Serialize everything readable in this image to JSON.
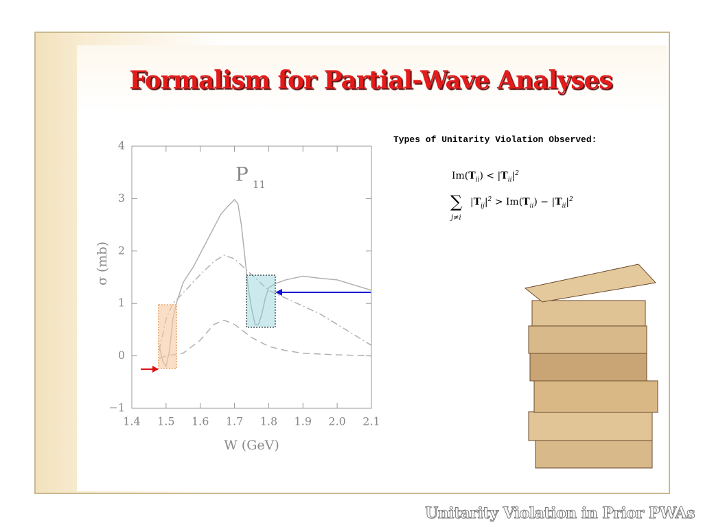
{
  "slide": {
    "title": "Formalism for Partial-Wave Analyses",
    "heading": "Types of Unitarity Violation Observed:",
    "equations": [
      [
        [
          "Im(",
          ""
        ],
        [
          "T",
          "b"
        ],
        [
          "ii",
          "sub"
        ],
        [
          ") < |",
          ""
        ],
        [
          "T",
          "b"
        ],
        [
          "ii",
          "sub"
        ],
        [
          "|",
          ""
        ],
        [
          "2",
          "sup"
        ]
      ],
      [
        [
          "|",
          ""
        ],
        [
          "T",
          "b"
        ],
        [
          "ij",
          "sub"
        ],
        [
          "|",
          ""
        ],
        [
          "2",
          "sup"
        ],
        [
          " > Im(",
          ""
        ],
        [
          "T",
          "b"
        ],
        [
          "ii",
          "sub"
        ],
        [
          ") − |",
          ""
        ],
        [
          "T",
          "b"
        ],
        [
          "ii",
          "sub"
        ],
        [
          "|",
          ""
        ],
        [
          "2",
          "sup"
        ]
      ]
    ],
    "sum_symbol": "∑",
    "sum_index": "j≠i",
    "footer": "Unitarity Violation in Prior PWAs"
  },
  "chart_data": {
    "type": "line",
    "annotation": "P",
    "annotation_subscript": "11",
    "x_label": "W (GeV)",
    "y_label": "σ (mb)",
    "xlim": [
      1.4,
      2.1
    ],
    "ylim": [
      -1,
      4
    ],
    "xticks": [
      1.4,
      1.5,
      1.6,
      1.7,
      1.8,
      1.9,
      {
        "value": 2,
        "label": "2.0"
      },
      2.1
    ],
    "yticks": [
      {
        "value": -1,
        "label": "−1"
      },
      0,
      1,
      2,
      3,
      4
    ],
    "series": [
      {
        "color": "#b0b0b0",
        "dash": "solid",
        "x": [
          1.48,
          1.49,
          1.5,
          1.51,
          1.52,
          1.53,
          1.55,
          1.58,
          1.6,
          1.62,
          1.64,
          1.66,
          1.68,
          1.7,
          1.71,
          1.72,
          1.73,
          1.74,
          1.75,
          1.76,
          1.77,
          1.78,
          1.79,
          1.8,
          1.82,
          1.85,
          1.9,
          1.95,
          2.0,
          2.05,
          2.1
        ],
        "values": [
          0.2,
          -0.1,
          -0.2,
          0.1,
          0.7,
          1.0,
          1.4,
          1.7,
          1.95,
          2.2,
          2.45,
          2.7,
          2.85,
          2.98,
          2.9,
          2.5,
          1.9,
          1.3,
          0.9,
          0.6,
          0.6,
          0.8,
          1.1,
          1.3,
          1.38,
          1.45,
          1.52,
          1.48,
          1.45,
          1.35,
          1.25
        ]
      },
      {
        "color": "#b0b0b0",
        "dash": "dashdot",
        "x": [
          1.48,
          1.5,
          1.52,
          1.55,
          1.6,
          1.64,
          1.67,
          1.7,
          1.75,
          1.8,
          1.85,
          1.9,
          1.95,
          2.0,
          2.05,
          2.1
        ],
        "values": [
          0.1,
          0.7,
          1.0,
          1.2,
          1.55,
          1.8,
          1.92,
          1.85,
          1.55,
          1.25,
          1.1,
          0.95,
          0.8,
          0.6,
          0.4,
          0.2
        ]
      },
      {
        "color": "#b0b0b0",
        "dash": "dashed",
        "x": [
          1.48,
          1.5,
          1.55,
          1.6,
          1.64,
          1.67,
          1.7,
          1.75,
          1.8,
          1.85,
          1.9,
          2.0,
          2.1
        ],
        "values": [
          -0.05,
          0.0,
          0.05,
          0.3,
          0.6,
          0.68,
          0.6,
          0.35,
          0.18,
          0.1,
          0.05,
          0.02,
          0.0
        ]
      }
    ]
  }
}
